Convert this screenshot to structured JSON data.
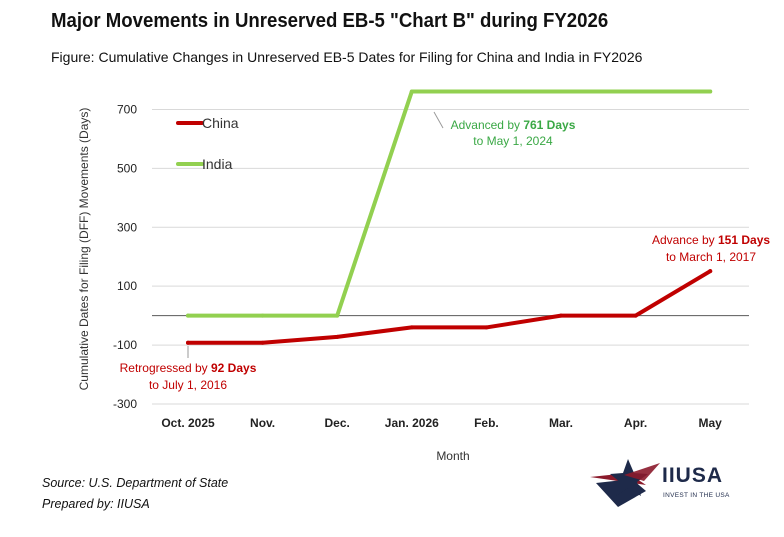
{
  "header": {
    "title": "Major Movements in Unreserved EB-5 \"Chart B\" during FY2026",
    "subtitle": "Figure: Cumulative Changes in Unreserved EB-5 Dates for Filing for China and India in FY2026"
  },
  "chart_data": {
    "type": "line",
    "categories": [
      "Oct. 2025",
      "Nov.",
      "Dec.",
      "Jan. 2026",
      "Feb.",
      "Mar.",
      "Apr.",
      "May"
    ],
    "series": [
      {
        "name": "China",
        "color": "#c00000",
        "values": [
          -92,
          -92,
          -72,
          -40,
          -40,
          0,
          0,
          151
        ]
      },
      {
        "name": "India",
        "color": "#92d050",
        "values": [
          0,
          0,
          0,
          761,
          761,
          761,
          761,
          761
        ]
      }
    ],
    "yticks": [
      -300,
      -100,
      100,
      300,
      500,
      700
    ],
    "ylim": [
      -300,
      800
    ],
    "xlabel": "Month",
    "ylabel": "Cumulative Dates for Filing (DFF) Movements (Days)",
    "legend_position": "top-left",
    "annotations": [
      {
        "id": "india",
        "prefix": "Advanced by ",
        "bold": "761 Days",
        "line2": "to May 1, 2024",
        "color": "#3aa845"
      },
      {
        "id": "china-up",
        "prefix": "Advance by ",
        "bold": "151 Days",
        "line2": "to March 1, 2017",
        "color": "#c00000"
      },
      {
        "id": "china-down",
        "prefix": "Retrogressed by ",
        "bold": "92 Days",
        "line2": "to July 1, 2016",
        "color": "#c00000"
      }
    ]
  },
  "footer": {
    "source": "Source: U.S. Department of State",
    "prepared": "Prepared by: IIUSA",
    "logo_name": "IIUSA",
    "logo_tagline": "INVEST IN THE USA",
    "logo_colors": {
      "navy": "#1e2a4a",
      "red": "#8b1a2b"
    }
  }
}
